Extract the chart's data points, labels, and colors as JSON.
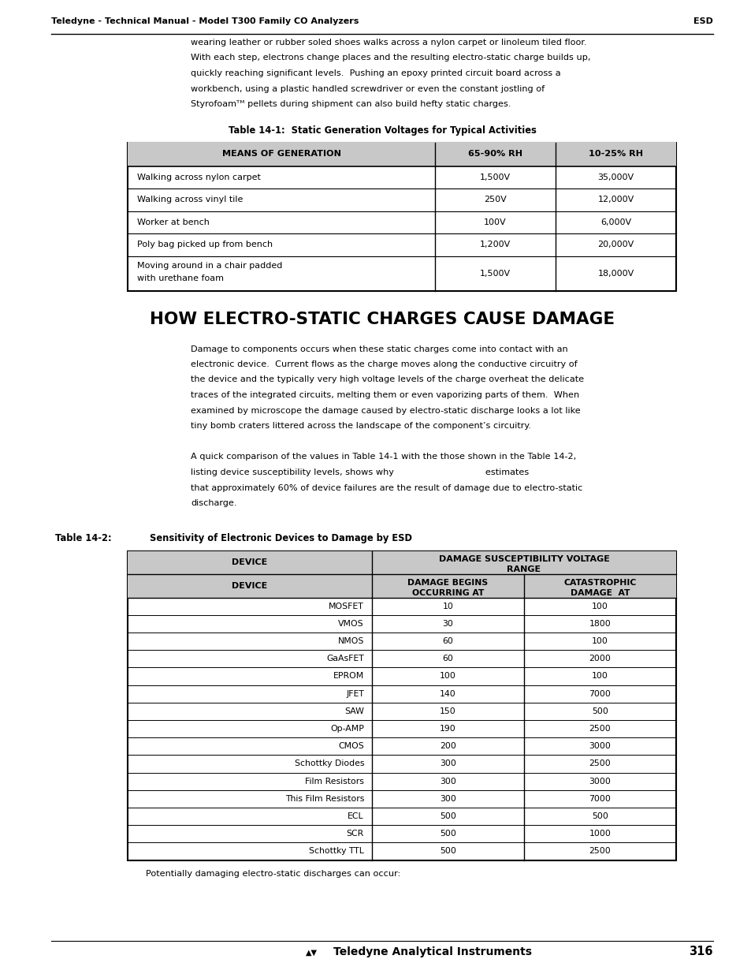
{
  "page_width": 9.54,
  "page_height": 12.35,
  "bg_color": "#ffffff",
  "header_left": "Teledyne - Technical Manual - Model T300 Family CO Analyzers",
  "header_right": "ESD",
  "table1_title": "Table 14-1:  Static Generation Voltages for Typical Activities",
  "table1_headers": [
    "MEANS OF GENERATION",
    "65-90% RH",
    "10-25% RH"
  ],
  "table1_rows": [
    [
      "Walking across nylon carpet",
      "1,500V",
      "35,000V"
    ],
    [
      "Walking across vinyl tile",
      "250V",
      "12,000V"
    ],
    [
      "Worker at bench",
      "100V",
      "6,000V"
    ],
    [
      "Poly bag picked up from bench",
      "1,200V",
      "20,000V"
    ],
    [
      "Moving around in a chair padded\nwith urethane foam",
      "1,500V",
      "18,000V"
    ]
  ],
  "section_title": "HOW ELECTRO-STATIC CHARGES CAUSE DAMAGE",
  "intro_lines": [
    "wearing leather or rubber soled shoes walks across a nylon carpet or linoleum tiled floor.",
    "With each step, electrons change places and the resulting electro-static charge builds up,",
    "quickly reaching significant levels.  Pushing an epoxy printed circuit board across a",
    "workbench, using a plastic handled screwdriver or even the constant jostling of",
    "Styrofoamᵀᴹ pellets during shipment can also build hefty static charges."
  ],
  "body1_lines": [
    "Damage to components occurs when these static charges come into contact with an",
    "electronic device.  Current flows as the charge moves along the conductive circuitry of",
    "the device and the typically very high voltage levels of the charge overheat the delicate",
    "traces of the integrated circuits, melting them or even vaporizing parts of them.  When",
    "examined by microscope the damage caused by electro-static discharge looks a lot like",
    "tiny bomb craters littered across the landscape of the component’s circuitry."
  ],
  "body2_lines": [
    "A quick comparison of the values in Table 14-1 with the those shown in the Table 14-2,",
    "listing device susceptibility levels, shows why                                estimates",
    "that approximately 60% of device failures are the result of damage due to electro-static",
    "discharge."
  ],
  "table2_title_left": "Table 14-2:",
  "table2_title_right": "Sensitivity of Electronic Devices to Damage by ESD",
  "table2_header1": "DEVICE",
  "table2_header2_line1": "DAMAGE SUSCEPTIBILITY VOLTAGE",
  "table2_header2_line2": "RANGE",
  "table2_subheader_left_line1": "DAMAGE BEGINS",
  "table2_subheader_left_line2": "OCCURRING AT",
  "table2_subheader_right_line1": "CATASTROPHIC",
  "table2_subheader_right_line2": "DAMAGE  AT",
  "table2_rows": [
    [
      "MOSFET",
      "10",
      "100"
    ],
    [
      "VMOS",
      "30",
      "1800"
    ],
    [
      "NMOS",
      "60",
      "100"
    ],
    [
      "GaAsFET",
      "60",
      "2000"
    ],
    [
      "EPROM",
      "100",
      "100"
    ],
    [
      "JFET",
      "140",
      "7000"
    ],
    [
      "SAW",
      "150",
      "500"
    ],
    [
      "Op-AMP",
      "190",
      "2500"
    ],
    [
      "CMOS",
      "200",
      "3000"
    ],
    [
      "Schottky Diodes",
      "300",
      "2500"
    ],
    [
      "Film Resistors",
      "300",
      "3000"
    ],
    [
      "This Film Resistors",
      "300",
      "7000"
    ],
    [
      "ECL",
      "500",
      "500"
    ],
    [
      "SCR",
      "500",
      "1000"
    ],
    [
      "Schottky TTL",
      "500",
      "2500"
    ]
  ],
  "footer_note": "Potentially damaging electro-static discharges can occur:",
  "footer_center": "Teledyne Analytical Instruments",
  "footer_page": "316"
}
